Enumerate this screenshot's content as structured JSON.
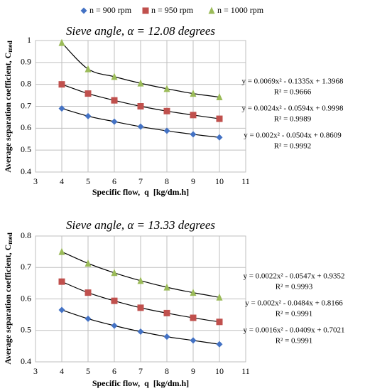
{
  "chart_data": [
    {
      "type": "line",
      "title": "Sieve angle, α = 12.08 degrees",
      "x_label": "Specific flow,  q  [kg/dm.h]",
      "y_label": "Average separation coefficient, C",
      "y_label_sub": "med",
      "x": [
        4,
        5,
        6,
        7,
        8,
        9,
        10
      ],
      "series": [
        {
          "name": "n = 900 rpm",
          "color": "#4472c4",
          "marker": "diamond",
          "values": [
            0.69,
            0.655,
            0.63,
            0.607,
            0.588,
            0.572,
            0.558
          ]
        },
        {
          "name": "n = 950 rpm",
          "color": "#c0504d",
          "marker": "square",
          "values": [
            0.8,
            0.758,
            0.727,
            0.7,
            0.678,
            0.66,
            0.643
          ]
        },
        {
          "name": "n = 1000 rpm",
          "color": "#9bbb59",
          "marker": "triangle",
          "values": [
            0.99,
            0.87,
            0.835,
            0.805,
            0.78,
            0.758,
            0.742
          ]
        }
      ],
      "trendline_color": "#000000",
      "annotations": [
        "y = 0.0069x² - 0.1335x + 1.3968",
        "R² = 0.9666",
        "y = 0.0024x² - 0.0594x + 0.9998",
        "R² = 0.9989",
        "y = 0.002x² - 0.0504x + 0.8609",
        "R² = 0.9992"
      ],
      "xlim": [
        3,
        11
      ],
      "xticks": [
        3,
        4,
        5,
        6,
        7,
        8,
        9,
        10,
        11
      ],
      "ylim": [
        0.4,
        1
      ],
      "yticks": [
        0.4,
        0.5,
        0.6,
        0.7,
        0.8,
        0.9,
        1
      ],
      "grid": true,
      "legend": "top"
    },
    {
      "type": "line",
      "title": "Sieve angle, α = 13.33 degrees",
      "x_label": "Specific flow,  q  [kg/dm.h]",
      "y_label": "Average separation coefficient, C",
      "y_label_sub": "med",
      "x": [
        4,
        5,
        6,
        7,
        8,
        9,
        10
      ],
      "series": [
        {
          "color": "#4472c4",
          "marker": "diamond",
          "values": [
            0.565,
            0.537,
            0.515,
            0.496,
            0.48,
            0.468,
            0.456
          ]
        },
        {
          "color": "#c0504d",
          "marker": "square",
          "values": [
            0.655,
            0.62,
            0.594,
            0.572,
            0.555,
            0.54,
            0.527
          ]
        },
        {
          "color": "#9bbb59",
          "marker": "triangle",
          "values": [
            0.75,
            0.713,
            0.683,
            0.658,
            0.637,
            0.62,
            0.605
          ]
        }
      ],
      "trendline_color": "#000000",
      "annotations": [
        "y = 0.0022x² - 0.0547x + 0.9352",
        "R² = 0.9993",
        "y = 0.002x² - 0.0484x + 0.8166",
        "R² = 0.9991",
        "y = 0.0016x² - 0.0409x + 0.7021",
        "R² = 0.9991"
      ],
      "xlim": [
        3,
        11
      ],
      "xticks": [
        3,
        4,
        5,
        6,
        7,
        8,
        9,
        10,
        11
      ],
      "ylim": [
        0.4,
        0.8
      ],
      "yticks": [
        0.4,
        0.5,
        0.6,
        0.7,
        0.8
      ],
      "grid": true
    }
  ]
}
